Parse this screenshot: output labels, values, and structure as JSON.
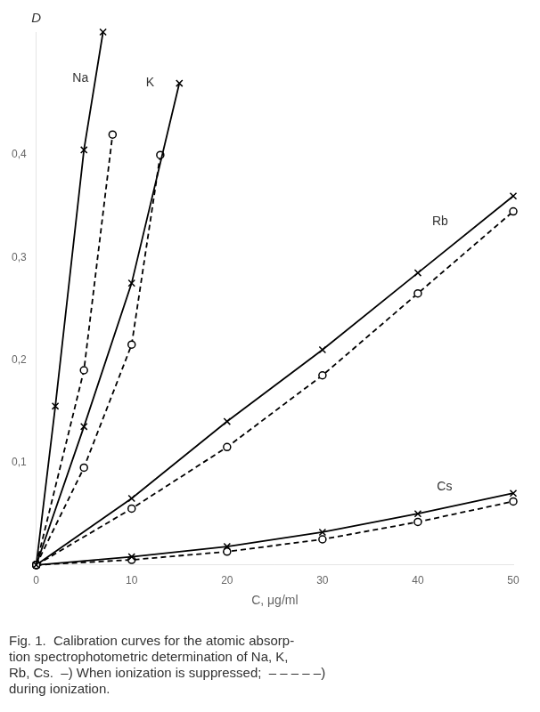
{
  "chart_data": {
    "type": "line",
    "xlabel": "C, μg/ml",
    "ylabel": "D",
    "caption": [
      "Fig. 1.  Calibration curves for the atomic absorp-",
      "tion spectrophotometric determination of Na, K,",
      "Rb, Cs.  –) When ionization is suppressed;  – – – – –)",
      "during ionization."
    ],
    "xlim": [
      0,
      50
    ],
    "ylim": [
      0,
      0.52
    ],
    "xticks": [
      0,
      10,
      20,
      30,
      40,
      50
    ],
    "yticks": [
      {
        "value": 0.1,
        "label": "0,1"
      },
      {
        "value": 0.2,
        "label": "0,2"
      },
      {
        "value": 0.3,
        "label": "0,3"
      },
      {
        "value": 0.4,
        "label": "0,4"
      }
    ],
    "grid": false,
    "series": [
      {
        "color": "#000000",
        "line_style": "solid",
        "marker": "x",
        "x": [
          0,
          2,
          5,
          7
        ],
        "values": [
          0,
          0.155,
          0.405,
          0.52
        ]
      },
      {
        "color": "#000000",
        "line_style": "dashed",
        "marker": "o",
        "x": [
          0,
          5,
          8
        ],
        "values": [
          0,
          0.19,
          0.42
        ]
      },
      {
        "color": "#000000",
        "line_style": "solid",
        "marker": "x",
        "x": [
          0,
          5,
          10,
          15
        ],
        "values": [
          0,
          0.135,
          0.275,
          0.47
        ]
      },
      {
        "color": "#000000",
        "line_style": "dashed",
        "marker": "o",
        "x": [
          0,
          5,
          10,
          13
        ],
        "values": [
          0,
          0.095,
          0.215,
          0.4
        ]
      },
      {
        "color": "#000000",
        "line_style": "solid",
        "marker": "x",
        "x": [
          0,
          10,
          20,
          30,
          40,
          50
        ],
        "values": [
          0,
          0.065,
          0.14,
          0.21,
          0.285,
          0.36
        ]
      },
      {
        "color": "#000000",
        "line_style": "dashed",
        "marker": "o",
        "x": [
          0,
          10,
          20,
          30,
          40,
          50
        ],
        "values": [
          0,
          0.055,
          0.115,
          0.185,
          0.265,
          0.345
        ]
      },
      {
        "color": "#000000",
        "line_style": "solid",
        "marker": "x",
        "x": [
          0,
          10,
          20,
          30,
          40,
          50
        ],
        "values": [
          0,
          0.008,
          0.018,
          0.032,
          0.05,
          0.07
        ]
      },
      {
        "color": "#000000",
        "line_style": "dashed",
        "marker": "o",
        "x": [
          0,
          10,
          20,
          30,
          40,
          50
        ],
        "values": [
          0,
          0.005,
          0.013,
          0.025,
          0.042,
          0.062
        ]
      }
    ],
    "annotations": [
      {
        "text": "Na",
        "x": 3.8,
        "y": 0.475
      },
      {
        "text": "K",
        "x": 11.5,
        "y": 0.47
      },
      {
        "text": "Rb",
        "x": 41.5,
        "y": 0.335
      },
      {
        "text": "Cs",
        "x": 42.0,
        "y": 0.076
      }
    ]
  }
}
